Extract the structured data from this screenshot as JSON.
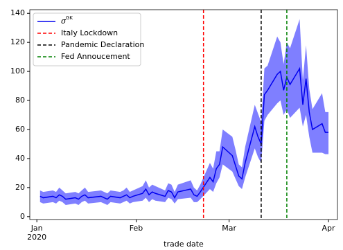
{
  "chart_data": {
    "type": "line",
    "x": [
      2,
      3,
      6,
      7,
      8,
      9,
      10,
      13,
      14,
      15,
      16,
      17,
      21,
      22,
      23,
      24,
      27,
      28,
      29,
      30,
      31,
      34,
      35,
      36,
      37,
      38,
      41,
      42,
      43,
      44,
      45,
      49,
      50,
      51,
      52,
      55,
      56,
      57,
      58,
      59,
      62,
      63,
      64,
      65,
      66,
      69,
      70,
      71,
      72,
      73,
      76,
      77,
      78,
      79,
      80,
      83,
      84,
      85,
      86,
      87,
      90,
      91,
      92
    ],
    "series": [
      {
        "name": "σ",
        "name_sup": "GK",
        "color": "#0000ee",
        "band_color": "#0000ff",
        "values": [
          14,
          13,
          14,
          13,
          15,
          14,
          12,
          13,
          12,
          14,
          15,
          13,
          14,
          13,
          12,
          14,
          13,
          14,
          15,
          13,
          14,
          16,
          19,
          15,
          17,
          16,
          14,
          18,
          17,
          13,
          17,
          19,
          15,
          14,
          17,
          27,
          24,
          33,
          36,
          48,
          42,
          35,
          28,
          26,
          37,
          62,
          55,
          50,
          84,
          87,
          98,
          100,
          87,
          96,
          91,
          102,
          77,
          95,
          72,
          60,
          64,
          58,
          58
        ],
        "upper": [
          18,
          17,
          18,
          17,
          20,
          18,
          16,
          17,
          16,
          18,
          20,
          17,
          18,
          17,
          16,
          18,
          17,
          18,
          20,
          17,
          18,
          21,
          25,
          20,
          22,
          21,
          18,
          23,
          22,
          17,
          22,
          25,
          20,
          18,
          22,
          37,
          33,
          45,
          45,
          60,
          55,
          46,
          36,
          34,
          48,
          77,
          71,
          65,
          102,
          104,
          124,
          120,
          105,
          120,
          116,
          136,
          94,
          118,
          88,
          74,
          85,
          72,
          72
        ],
        "lower": [
          10,
          9,
          10,
          9,
          11,
          10,
          8,
          9,
          8,
          10,
          11,
          9,
          10,
          9,
          8,
          10,
          9,
          10,
          11,
          9,
          10,
          11,
          13,
          10,
          12,
          11,
          10,
          13,
          12,
          9,
          12,
          13,
          10,
          10,
          12,
          19,
          17,
          23,
          27,
          36,
          31,
          26,
          21,
          19,
          27,
          47,
          41,
          37,
          66,
          70,
          78,
          80,
          70,
          74,
          68,
          75,
          62,
          70,
          55,
          44,
          44,
          43,
          43
        ]
      }
    ],
    "vlines": [
      {
        "x": 53,
        "label": "Italy Lockdown",
        "color": "#ff0000"
      },
      {
        "x": 71,
        "label": "Pandemic Declaration",
        "color": "#000000"
      },
      {
        "x": 79,
        "label": "Fed Annoucement",
        "color": "#008000"
      }
    ],
    "xlim": [
      -1.2,
      94.8
    ],
    "ylim": [
      -2,
      142.5
    ],
    "xticks": [
      {
        "value": 1,
        "label": "Jan"
      },
      {
        "value": 32,
        "label": "Feb"
      },
      {
        "value": 61,
        "label": "Mar"
      },
      {
        "value": 92,
        "label": "Apr"
      }
    ],
    "x_year_label": "2020",
    "yticks": [
      0,
      20,
      40,
      60,
      80,
      100,
      120,
      140
    ],
    "xlabel": "trade date",
    "legend": "upper-left"
  }
}
